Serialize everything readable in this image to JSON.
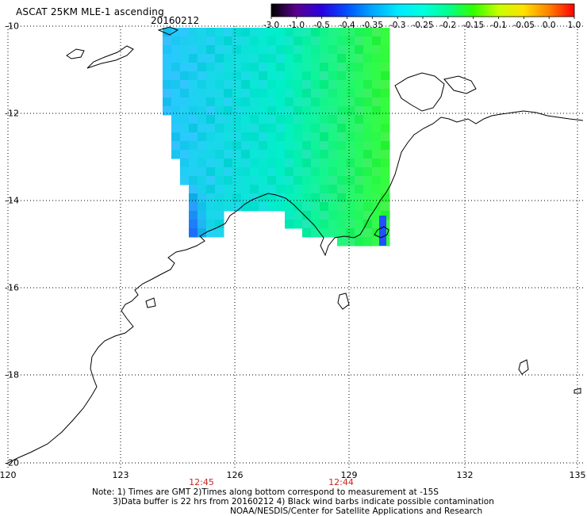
{
  "header": {
    "title": "ASCAT 25KM MLE-1 ascending",
    "date": "20160212"
  },
  "colorbar": {
    "labels": [
      "-3.0",
      "-1.0",
      "-0.5",
      "-0.4",
      "-0.35",
      "-0.3",
      "-0.25",
      "-0.2",
      "-0.15",
      "-0.1",
      "-0.05",
      "0.0",
      "1.0"
    ],
    "colors": [
      "#000000",
      "#5a0090",
      "#2a00e0",
      "#0050ff",
      "#00a8ff",
      "#00e8ff",
      "#00ffe0",
      "#00ff90",
      "#30ff00",
      "#c8ff00",
      "#ffe000",
      "#ff8000",
      "#ff0000"
    ]
  },
  "axes": {
    "lat_labels": [
      "-10",
      "-12",
      "-14",
      "-16",
      "-18",
      "-20"
    ],
    "lon_labels": [
      "120",
      "123",
      "126",
      "129",
      "132",
      "135"
    ]
  },
  "pass_times": [
    "12:45",
    "12:44"
  ],
  "notes": [
    "Note: 1) Times are GMT 2)Times along bottom correspond to measurement at -15S",
    "3)Data buffer is 22 hrs from 20160212 4) Black wind barbs indicate possible contamination",
    "NOAA/NESDIS/Center for Satellite Applications and Research"
  ],
  "colors": {
    "grid": "#000000",
    "coast": "#000000",
    "time_label": "#c8281e"
  }
}
